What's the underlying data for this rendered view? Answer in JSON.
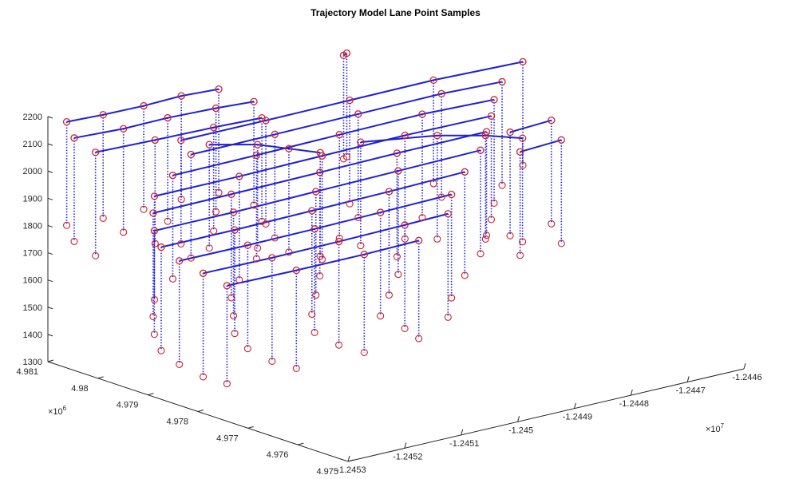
{
  "chart_data": {
    "type": "scatter",
    "title": "Trajectory Model Lane Point Samples",
    "xlabel": "",
    "ylabel": "",
    "zlabel": "",
    "x_axis": {
      "multiplier": "×10^7",
      "ticks": [
        -1.2453,
        -1.2452,
        -1.2451,
        -1.245,
        -1.2449,
        -1.2448,
        -1.2447,
        -1.2446
      ],
      "tick_labels": [
        "-1.2453",
        "-1.2452",
        "-1.2451",
        "-1.245",
        "-1.2449",
        "-1.2448",
        "-1.2447",
        "-1.2446"
      ],
      "range": [
        -1.2453,
        -1.2446
      ]
    },
    "y_axis": {
      "multiplier": "×10^6",
      "ticks": [
        4.975,
        4.976,
        4.977,
        4.978,
        4.979,
        4.98,
        4.981
      ],
      "tick_labels": [
        "4.975",
        "4.976",
        "4.977",
        "4.978",
        "4.979",
        "4.98",
        "4.981"
      ],
      "range": [
        4.975,
        4.981
      ]
    },
    "z_axis": {
      "ticks": [
        1300,
        1400,
        1500,
        1600,
        1700,
        1800,
        1900,
        2000,
        2100,
        2200
      ],
      "tick_labels": [
        "1300",
        "1400",
        "1500",
        "1600",
        "1700",
        "1800",
        "1900",
        "2000",
        "2100",
        "2200"
      ],
      "range": [
        1300,
        2200
      ]
    },
    "grid": false,
    "legend": "none",
    "series": [
      {
        "role": "lane polylines",
        "style": "solid",
        "color": "#1f1fd6"
      },
      {
        "role": "vertical drop lines",
        "style": "dotted",
        "color": "#1f1fd6"
      },
      {
        "role": "sample points",
        "marker": "circle",
        "color": "#cc2233"
      }
    ],
    "lanes": [
      {
        "z": 2180,
        "points": [
          [
            -1.24528,
            4.98085
          ],
          [
            -1.24522,
            4.9808
          ],
          [
            -1.24515,
            4.98078
          ],
          [
            -1.24508,
            4.98082
          ],
          [
            -1.24502,
            4.98075
          ]
        ]
      },
      {
        "z": 2130,
        "points": [
          [
            -1.24528,
            4.9807
          ],
          [
            -1.2452,
            4.98062
          ],
          [
            -1.24512,
            4.98064
          ],
          [
            -1.24504,
            4.98058
          ],
          [
            -1.24498,
            4.9805
          ]
        ]
      },
      {
        "z": 2080,
        "points": [
          [
            -1.24526,
            4.9805
          ],
          [
            -1.24516,
            4.98044
          ],
          [
            -1.24506,
            4.9804
          ],
          [
            -1.24498,
            4.98034
          ]
        ]
      },
      {
        "z": 2040,
        "points": [
          [
            -1.2451,
            4.9806
          ],
          [
            -1.24495,
            4.9806
          ],
          [
            -1.2448,
            4.98062
          ],
          [
            -1.24465,
            4.98064
          ],
          [
            -1.2445,
            4.98055
          ]
        ]
      },
      {
        "z": 2000,
        "points": [
          [
            -1.2451,
            4.9804
          ],
          [
            -1.24495,
            4.98042
          ],
          [
            -1.2448,
            4.98045
          ],
          [
            -1.24465,
            4.98048
          ],
          [
            -1.24455,
            4.9804
          ]
        ]
      },
      {
        "z": 1960,
        "points": [
          [
            -1.24515,
            4.9802
          ],
          [
            -1.245,
            4.98022
          ],
          [
            -1.24485,
            4.98026
          ],
          [
            -1.2447,
            4.9803
          ],
          [
            -1.24458,
            4.98022
          ]
        ]
      },
      {
        "z": 1920,
        "points": [
          [
            -1.2452,
            4.98
          ],
          [
            -1.24505,
            4.98
          ],
          [
            -1.2449,
            4.98004
          ],
          [
            -1.24475,
            4.98008
          ],
          [
            -1.2446,
            4.98005
          ]
        ]
      },
      {
        "z": 1880,
        "points": [
          [
            -1.24522,
            4.9798
          ],
          [
            -1.24508,
            4.97982
          ],
          [
            -1.24492,
            4.97986
          ],
          [
            -1.24478,
            4.9799
          ],
          [
            -1.24462,
            4.97992
          ]
        ]
      },
      {
        "z": 1840,
        "points": [
          [
            -1.24524,
            4.97955
          ],
          [
            -1.2451,
            4.97955
          ],
          [
            -1.24495,
            4.9796
          ],
          [
            -1.2448,
            4.97965
          ],
          [
            -1.24465,
            4.9797
          ]
        ]
      },
      {
        "z": 1800,
        "points": [
          [
            -1.24525,
            4.9793
          ],
          [
            -1.24512,
            4.9793
          ],
          [
            -1.24498,
            4.97934
          ],
          [
            -1.24484,
            4.97938
          ],
          [
            -1.2447,
            4.97945
          ]
        ]
      },
      {
        "z": 1760,
        "points": [
          [
            -1.24524,
            4.97905
          ],
          [
            -1.24512,
            4.97904
          ],
          [
            -1.245,
            4.97906
          ],
          [
            -1.24488,
            4.9791
          ],
          [
            -1.24475,
            4.97915
          ]
        ]
      },
      {
        "z": 1720,
        "points": [
          [
            -1.24522,
            4.9788
          ],
          [
            -1.2451,
            4.97878
          ],
          [
            -1.24498,
            4.9788
          ],
          [
            -1.24486,
            4.97884
          ],
          [
            -1.24478,
            4.97888
          ]
        ]
      },
      {
        "z": 1680,
        "points": [
          [
            -1.2452,
            4.97855
          ],
          [
            -1.24508,
            4.97852
          ],
          [
            -1.24496,
            4.97852
          ],
          [
            -1.24486,
            4.97856
          ]
        ]
      },
      {
        "z": 1900,
        "points": [
          [
            -1.2448,
            4.9804
          ],
          [
            -1.2447,
            4.98
          ],
          [
            -1.24465,
            4.9796
          ],
          [
            -1.24462,
            4.9792
          ]
        ]
      },
      {
        "z": 2000,
        "points": [
          [
            -1.24505,
            4.9806
          ],
          [
            -1.245,
            4.9802
          ],
          [
            -1.24498,
            4.9798
          ],
          [
            -1.24496,
            4.9794
          ]
        ]
      },
      {
        "z": 1860,
        "points": [
          [
            -1.24458,
            4.9799
          ],
          [
            -1.2445,
            4.97998
          ]
        ]
      },
      {
        "z": 1800,
        "points": [
          [
            -1.24458,
            4.9797
          ],
          [
            -1.2445,
            4.97978
          ]
        ]
      },
      {
        "z": 2280,
        "points": [
          [
            -1.24486,
            4.98
          ],
          [
            -1.24487,
            4.97995
          ]
        ]
      }
    ]
  }
}
